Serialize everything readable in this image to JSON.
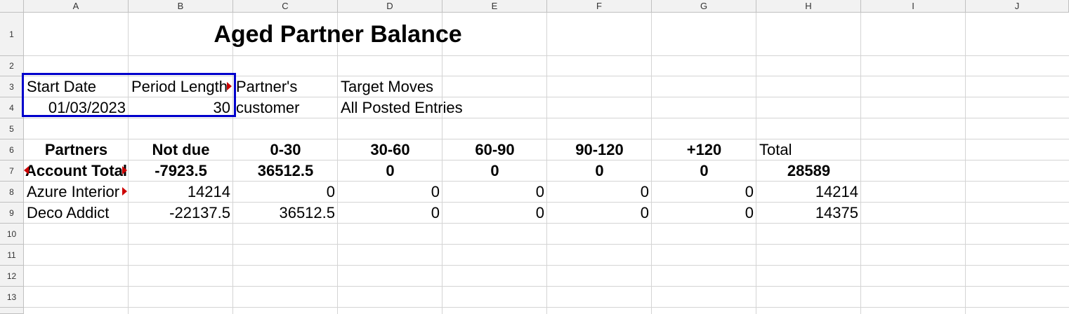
{
  "columns": [
    "A",
    "B",
    "C",
    "D",
    "E",
    "F",
    "G",
    "H",
    "I",
    "J"
  ],
  "rows": [
    "1",
    "2",
    "3",
    "4",
    "5",
    "6",
    "7",
    "8",
    "9",
    "10",
    "11",
    "12",
    "13"
  ],
  "report": {
    "title": "Aged Partner Balance",
    "start_date_label": "Start Date",
    "period_length_label": "Period Length",
    "partners_label": "Partner's",
    "target_moves_label": "Target Moves",
    "start_date": "01/03/2023",
    "period_length": "30",
    "partners": "customer",
    "target_moves": "All Posted Entries"
  },
  "table": {
    "headers": [
      "Partners",
      "Not due",
      "0-30",
      "30-60",
      "60-90",
      "90-120",
      "+120",
      "Total"
    ],
    "account_total": [
      "Account Total",
      "-7923.5",
      "36512.5",
      "0",
      "0",
      "0",
      "0",
      "28589"
    ],
    "rows": [
      [
        "Azure Interior",
        "14214",
        "0",
        "0",
        "0",
        "0",
        "0",
        "14214"
      ],
      [
        "Deco Addict",
        "-22137.5",
        "36512.5",
        "0",
        "0",
        "0",
        "0",
        "14375"
      ]
    ]
  },
  "selection_color": "#0000cc",
  "overflow_marker_color": "#cc0000"
}
